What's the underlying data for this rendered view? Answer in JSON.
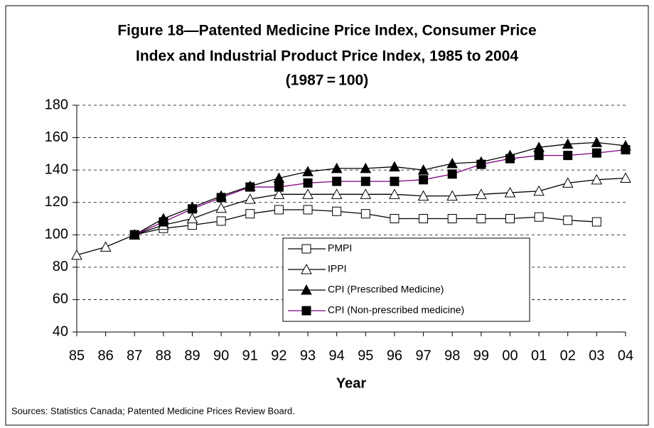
{
  "chart_data": {
    "type": "line",
    "title": [
      "Figure 18—Patented Medicine Price Index, Consumer Price",
      "Index and Industrial Product Price Index, 1985 to 2004",
      "(1987 = 100)"
    ],
    "x_label": "Year",
    "source": "Sources: Statistics Canada; Patented Medicine Prices Review Board.",
    "categories": [
      "85",
      "86",
      "87",
      "88",
      "89",
      "90",
      "91",
      "92",
      "93",
      "94",
      "95",
      "96",
      "97",
      "98",
      "99",
      "00",
      "01",
      "02",
      "03",
      "04"
    ],
    "ylim": [
      40,
      180
    ],
    "yticks": [
      40,
      60,
      80,
      100,
      120,
      140,
      160,
      180
    ],
    "grid": true,
    "series": [
      {
        "name": "PMPI",
        "color": "#000000",
        "marker": "square-open",
        "values": [
          null,
          null,
          100,
          104,
          106,
          108.5,
          113,
          115.5,
          115.5,
          114.5,
          113,
          110,
          110,
          110,
          110,
          110,
          111,
          109,
          108,
          null
        ]
      },
      {
        "name": "IPPI",
        "color": "#000000",
        "marker": "triangle-open",
        "values": [
          87.5,
          92.5,
          100,
          106,
          110,
          116.5,
          122,
          125,
          125,
          125,
          125,
          125,
          124,
          124,
          125,
          126,
          127,
          132,
          134,
          135
        ]
      },
      {
        "name": "CPI (Prescribed Medicine)",
        "color": "#000000",
        "marker": "triangle-filled",
        "values": [
          null,
          null,
          100,
          110,
          117,
          124,
          130,
          135,
          139,
          141,
          141,
          142,
          140,
          144,
          145,
          149,
          154,
          156,
          157,
          155
        ]
      },
      {
        "name": "CPI (Non-prescribed medicine)",
        "color": "#800080",
        "marker": "square-filled",
        "values": [
          null,
          null,
          100,
          108,
          116,
          123,
          129.5,
          129.5,
          132,
          133,
          133,
          133,
          134,
          137.5,
          143.5,
          147,
          149,
          149,
          150.5,
          152.5
        ]
      }
    ]
  }
}
